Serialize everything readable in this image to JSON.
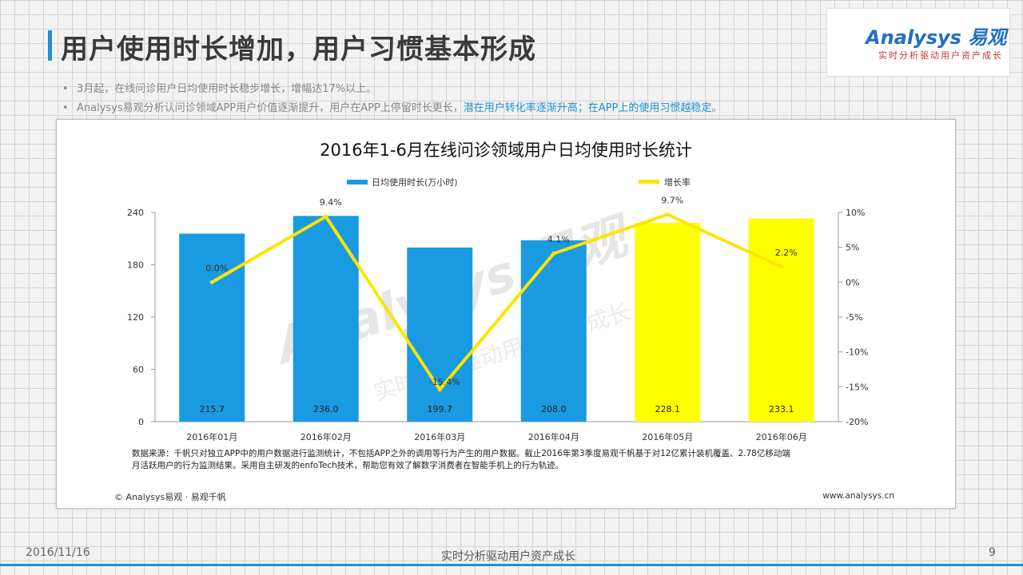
{
  "page": {
    "title": "用户使用时长增加，用户习惯基本形成",
    "bullets": [
      {
        "text": "3月起，在线问诊用户日均使用时长稳步增长，增幅达17%以上。",
        "highlight": ""
      },
      {
        "text": "Analysys易观分析认问诊领域APP用户价值逐渐提升，用户在APP上停留时长更长，",
        "highlight": "潜在用户转化率逐渐升高；在APP上的使用习惯越稳定",
        "suffix": "。"
      }
    ]
  },
  "logo": {
    "main": "Analysys 易观",
    "sub": "实时分析驱动用户资产成长"
  },
  "footer": {
    "date": "2016/11/16",
    "center": "实时分析驱动用户资产成长",
    "page": "9"
  },
  "chart_data": {
    "type": "bar",
    "title": "2016年1-6月在线问诊领域用户日均使用时长统计",
    "categories": [
      "2016年01月",
      "2016年02月",
      "2016年03月",
      "2016年04月",
      "2016年05月",
      "2016年06月"
    ],
    "series": [
      {
        "name": "日均使用时长(万小时)",
        "type": "bar",
        "axis": "left",
        "values": [
          215.7,
          236.0,
          199.7,
          208.0,
          228.1,
          233.1
        ],
        "labels": [
          "215.7",
          "236.0",
          "199.7",
          "208.0",
          "228.1",
          "233.1"
        ],
        "colors": [
          "#1a9ae0",
          "#1a9ae0",
          "#1a9ae0",
          "#1a9ae0",
          "#ffff00",
          "#ffff00"
        ]
      },
      {
        "name": "增长率",
        "type": "line",
        "axis": "right",
        "values": [
          0.0,
          9.4,
          -15.4,
          4.1,
          9.7,
          2.2
        ],
        "labels": [
          "0.0%",
          "9.4%",
          "-15.4%",
          "4.1%",
          "9.7%",
          "2.2%"
        ],
        "color": "#ffe400"
      }
    ],
    "left_axis": {
      "ylim": [
        0,
        240
      ],
      "ticks": [
        0,
        60,
        120,
        180,
        240
      ],
      "tick_labels": [
        "0",
        "60",
        "120",
        "180",
        "240"
      ]
    },
    "right_axis": {
      "ylim": [
        -20,
        10
      ],
      "ticks": [
        -20,
        -15,
        -10,
        -5,
        0,
        5,
        10
      ],
      "tick_labels": [
        "-20%",
        "-15%",
        "-10%",
        "-5%",
        "0%",
        "5%",
        "10%"
      ]
    },
    "legend_position": "top",
    "watermark": {
      "main": "Analysys 易观",
      "sub": "实时分析驱动用户资产成长"
    },
    "source_note_lines": [
      "数据来源：千帆只对独立APP中的用户数据进行监测统计，不包括APP之外的调用等行为产生的用户数据。截止2016年第3季度易观千帆基于对12亿累计装机覆盖、2.78亿移动端",
      "月活跃用户的行为监测结果。采用自主研发的enfoTech技术，帮助您有效了解数字消费者在智能手机上的行为轨迹。"
    ],
    "copyright": "© Analysys易观 · 易观千帆",
    "website": "www.analysys.cn"
  }
}
